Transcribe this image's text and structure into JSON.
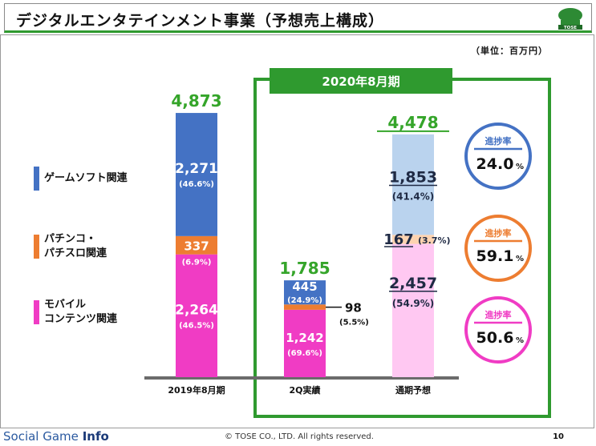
{
  "title": "デジタルエンタテインメント事業（予想売上構成）",
  "logo_text": "TOSE",
  "unit": "（単位：百万円）",
  "period_label": "2020年8月期",
  "legend": [
    {
      "line1": "ゲームソフト関連",
      "line2": "",
      "color": "#4472c4"
    },
    {
      "line1": "パチンコ・",
      "line2": "パチスロ関連",
      "color": "#ed7d31"
    },
    {
      "line1": "モバイル",
      "line2": "コンテンツ関連",
      "color": "#f03cc4"
    }
  ],
  "progress": [
    {
      "label": "進捗率",
      "value": "24.0",
      "unit": "%",
      "color": "#4472c4"
    },
    {
      "label": "進捗率",
      "value": "59.1",
      "unit": "%",
      "color": "#ed7d31"
    },
    {
      "label": "進捗率",
      "value": "50.6",
      "unit": "%",
      "color": "#f03cc4"
    }
  ],
  "chart_data": {
    "type": "bar",
    "stacked": true,
    "categories": [
      "2019年8月期",
      "2Q実績",
      "通期予想"
    ],
    "totals": [
      "4,873",
      "1,785",
      "4,478"
    ],
    "series": [
      {
        "name": "モバイルコンテンツ関連",
        "values": [
          2264,
          1242,
          2457
        ],
        "value_labels": [
          "2,264",
          "1,242",
          "2,457"
        ],
        "pct_labels": [
          "(46.5%)",
          "(69.6%)",
          "(54.9%)"
        ]
      },
      {
        "name": "パチンコ・パチスロ関連",
        "values": [
          337,
          98,
          167
        ],
        "value_labels": [
          "337",
          "98",
          "167"
        ],
        "pct_labels": [
          "(6.9%)",
          "(5.5%)",
          "(3.7%)"
        ]
      },
      {
        "name": "ゲームソフト関連",
        "values": [
          2271,
          445,
          1853
        ],
        "value_labels": [
          "2,271",
          "445",
          "1,853"
        ],
        "pct_labels": [
          "(46.6%)",
          "(24.9%)",
          "(41.4%)"
        ]
      }
    ]
  },
  "footer": {
    "brand_a": "Social Game",
    "brand_b": "Info",
    "copyright": "© TOSE CO., LTD. All rights reserved.",
    "page": "10"
  }
}
